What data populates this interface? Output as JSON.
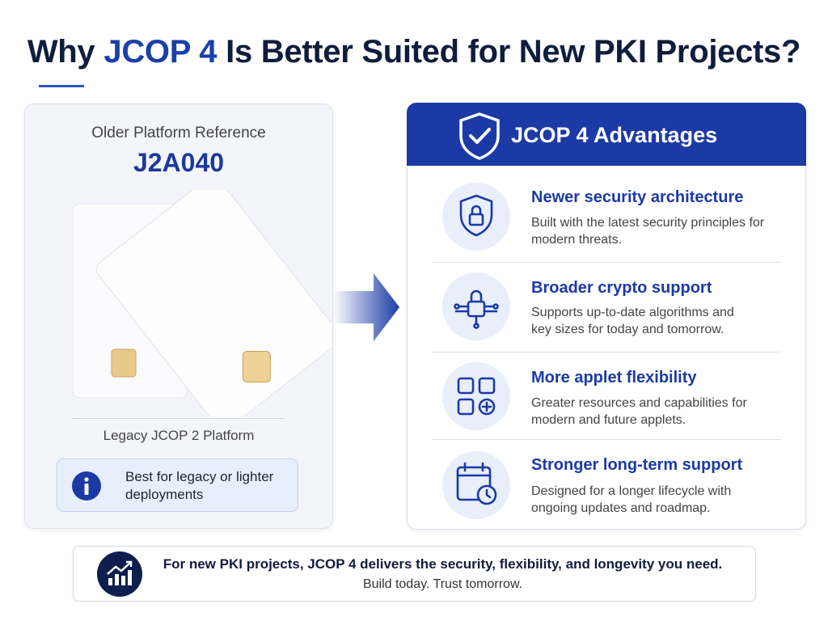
{
  "header": {
    "title": {
      "before": "Why",
      "highlight": "JCOP 4",
      "after": "Is Better Suited for New PKI Projects?"
    }
  },
  "left_panel": {
    "caption": "Older Platform Reference",
    "model": "J2A040",
    "platform": "Legacy JCOP 2 Platform",
    "note": "Best for legacy or lighter deployments"
  },
  "right_panel": {
    "title": "JCOP 4 Advantages",
    "items": [
      {
        "title": "Newer security architecture",
        "description": "Built with the latest security principles for modern threats."
      },
      {
        "title": "Broader crypto support",
        "description": "Supports up-to-date algorithms and key sizes for today and tomorrow."
      },
      {
        "title": "More applet flexibility",
        "description": "Greater resources and capabilities for modern and future applets."
      },
      {
        "title": "Stronger long-term support",
        "description": "Designed for a longer lifecycle with ongoing updates and roadmap."
      }
    ]
  },
  "footer": {
    "headline": "For new PKI projects, JCOP 4 delivers the security, flexibility, and longevity you need.",
    "tagline": "Build today. Trust tomorrow."
  }
}
